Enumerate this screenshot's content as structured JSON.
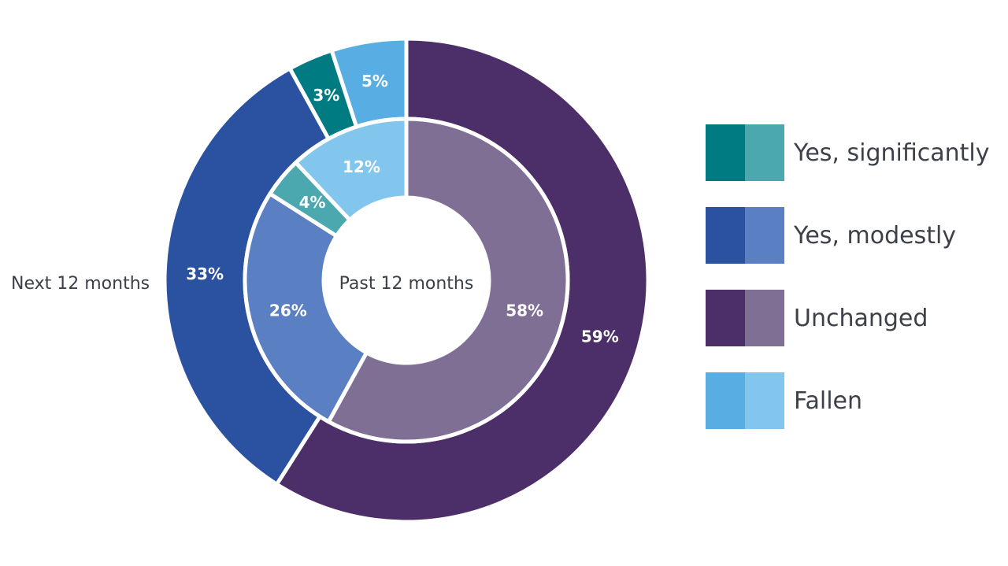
{
  "chart_data": {
    "type": "donut",
    "categories": [
      "Yes, significantly",
      "Yes, modestly",
      "Unchanged",
      "Fallen"
    ],
    "series": [
      {
        "name": "Past 12 months",
        "values": [
          4,
          26,
          58,
          12
        ],
        "labels": [
          "4%",
          "26%",
          "58%",
          "12%"
        ]
      },
      {
        "name": "Next 12 months",
        "values": [
          3,
          33,
          59,
          5
        ],
        "labels": [
          "3%",
          "33%",
          "59%",
          "5%"
        ]
      }
    ],
    "colors": {
      "outer": [
        "#007b82",
        "#2a52a0",
        "#4c2e68",
        "#58aee3"
      ],
      "inner": [
        "#4aa8ae",
        "#5a7fc3",
        "#806f95",
        "#82c6ee"
      ]
    }
  },
  "labels": {
    "inner_ring": "Past 12 months",
    "outer_ring": "Next 12 months"
  }
}
